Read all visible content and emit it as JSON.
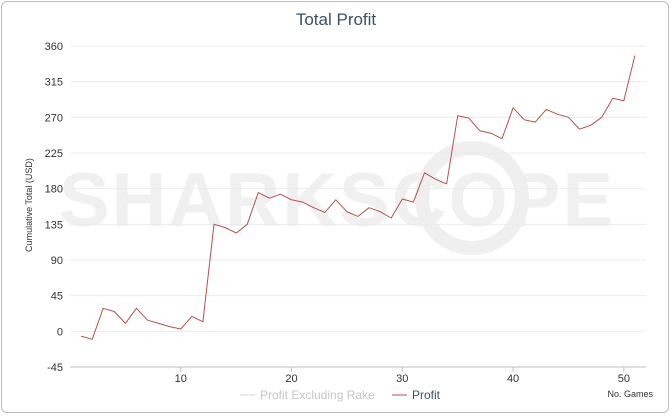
{
  "chart_data": {
    "type": "line",
    "title": "Total Profit",
    "xlabel": "No. Games",
    "ylabel": "Cumulative Total (USD)",
    "xlim": [
      0,
      52
    ],
    "ylim": [
      -45,
      360
    ],
    "yticks": [
      -45,
      0,
      45,
      90,
      135,
      180,
      225,
      270,
      315,
      360
    ],
    "xticks": [
      10,
      20,
      30,
      40,
      50
    ],
    "grid": true,
    "legend_position": "bottom",
    "watermark": "SHARKSCOPE",
    "series": [
      {
        "name": "Profit Excluding Rake",
        "color": "#d9d9d9",
        "x": [],
        "y": []
      },
      {
        "name": "Profit",
        "color": "#b5524f",
        "x": [
          1,
          2,
          3,
          4,
          5,
          6,
          7,
          8,
          9,
          10,
          11,
          12,
          13,
          14,
          15,
          16,
          17,
          18,
          19,
          20,
          21,
          22,
          23,
          24,
          25,
          26,
          27,
          28,
          29,
          30,
          31,
          32,
          33,
          34,
          35,
          36,
          37,
          38,
          39,
          40,
          41,
          42,
          43,
          44,
          45,
          46,
          47,
          48,
          49,
          50,
          51
        ],
        "y": [
          -6,
          -10,
          29,
          25,
          10,
          29,
          14,
          10,
          6,
          3,
          19,
          12,
          135,
          131,
          124,
          135,
          175,
          168,
          173,
          166,
          163,
          156,
          150,
          166,
          151,
          145,
          156,
          151,
          143,
          167,
          163,
          200,
          192,
          186,
          272,
          269,
          253,
          250,
          243,
          282,
          267,
          264,
          280,
          274,
          270,
          255,
          260,
          270,
          294,
          291,
          348
        ]
      }
    ]
  }
}
